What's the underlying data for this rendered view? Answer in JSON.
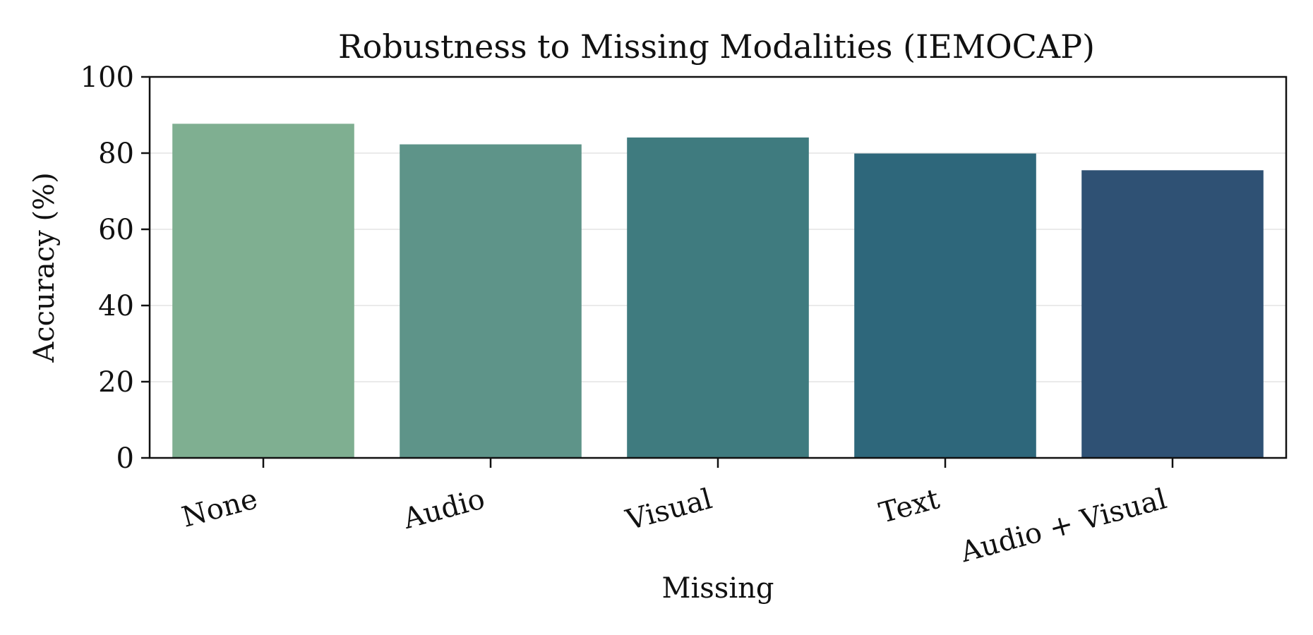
{
  "chart_data": {
    "type": "bar",
    "title": "Robustness to Missing Modalities (IEMOCAP)",
    "xlabel": "Missing",
    "ylabel": "Accuracy (%)",
    "categories": [
      "None",
      "Audio",
      "Visual",
      "Text",
      "Audio + Visual"
    ],
    "values": [
      87.7,
      82.3,
      84.1,
      79.9,
      75.5
    ],
    "colors": [
      "#7faf91",
      "#5e9489",
      "#3f7b7f",
      "#2e677b",
      "#2f5174"
    ],
    "ylim": [
      0,
      100
    ],
    "yticks": [
      0,
      20,
      40,
      60,
      80,
      100
    ],
    "grid": true,
    "grid_axis": "y",
    "legend": "none"
  }
}
